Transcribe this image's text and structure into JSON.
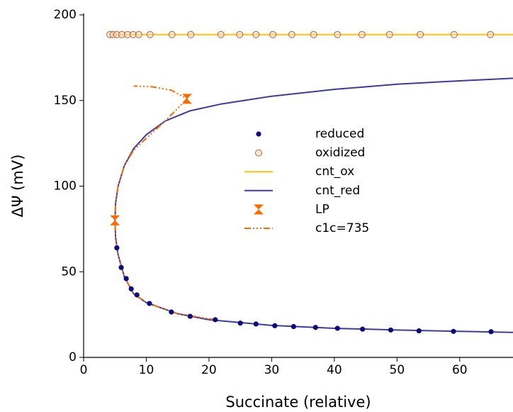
{
  "chart_data": {
    "type": "line",
    "x_label": "Succinate (relative)",
    "y_label": "ΔΨ (mV)",
    "xlim": [
      0,
      68.5
    ],
    "ylim": [
      0,
      200
    ],
    "xticks": [
      0,
      10,
      20,
      30,
      40,
      50,
      60
    ],
    "yticks": [
      0,
      50,
      100,
      150,
      200
    ],
    "legend": "center",
    "series": [
      {
        "name": "reduced",
        "color": "#0b0b7e",
        "style": "scatter",
        "marker": "filled-circle",
        "x": [
          5.3,
          6.0,
          6.8,
          7.6,
          8.5,
          10.5,
          14.0,
          17.0,
          21.0,
          25.0,
          27.5,
          30.5,
          33.5,
          37.0,
          40.5,
          44.5,
          49.0,
          53.5,
          59.0,
          65.0
        ],
        "values": [
          64,
          52.5,
          46,
          40,
          36.5,
          31.5,
          26.5,
          24,
          22,
          20,
          19.5,
          18.5,
          18,
          17.5,
          17,
          16.5,
          16,
          15.5,
          15.2,
          15
        ]
      },
      {
        "name": "oxidized",
        "color": "#b5643c",
        "style": "scatter",
        "marker": "open-circle",
        "x": [
          4.2,
          4.7,
          5.3,
          6.1,
          7.0,
          7.9,
          8.8,
          10.6,
          14.1,
          17.1,
          21.9,
          24.9,
          27.5,
          30.2,
          33.2,
          36.7,
          40.5,
          44.4,
          48.8,
          53.7,
          59.1,
          64.9
        ],
        "values": [
          188.5,
          188.5,
          188.5,
          188.5,
          188.5,
          188.5,
          188.5,
          188.5,
          188.5,
          188.5,
          188.5,
          188.5,
          188.5,
          188.5,
          188.5,
          188.5,
          188.5,
          188.5,
          188.5,
          188.5,
          188.5,
          188.5
        ]
      },
      {
        "name": "cnt_ox",
        "color": "#ffc20e",
        "style": "solid",
        "x": [
          4.2,
          68.5
        ],
        "values": [
          188.5,
          188.5
        ]
      },
      {
        "name": "cnt_red",
        "color": "#3b3ba0",
        "style": "solid",
        "x": [
          68.5,
          60,
          50,
          40,
          30,
          20,
          15,
          10,
          8,
          6.5,
          5.5,
          5.1,
          5,
          5.1,
          5.5,
          6.5,
          8,
          10,
          13,
          17,
          22,
          30,
          40,
          50,
          60,
          68.5
        ],
        "values": [
          14.6,
          15.2,
          16,
          17,
          18.7,
          22,
          25.5,
          32,
          37,
          47,
          60,
          70,
          80,
          90,
          100,
          112,
          122,
          130,
          138,
          144,
          148,
          152.5,
          156.5,
          159.5,
          161.5,
          163
        ]
      },
      {
        "name": "LP",
        "color": "#ff6a00",
        "style": "scatter",
        "marker": "hourglass",
        "x": [
          5,
          16.5
        ],
        "values": [
          80,
          151
        ]
      },
      {
        "name": "c1c=735",
        "color": "#ff6a00",
        "style": "dashdot",
        "x": [
          21,
          15,
          10,
          8,
          6.5,
          5.5,
          5.1,
          5,
          5.1,
          5.5,
          6.5,
          8,
          10,
          13,
          16.5,
          14,
          11,
          8
        ],
        "values": [
          22,
          25.5,
          32,
          37,
          47,
          60,
          70,
          80,
          90,
          100,
          112,
          121,
          128,
          138,
          151,
          156,
          158,
          158.5
        ]
      }
    ]
  }
}
